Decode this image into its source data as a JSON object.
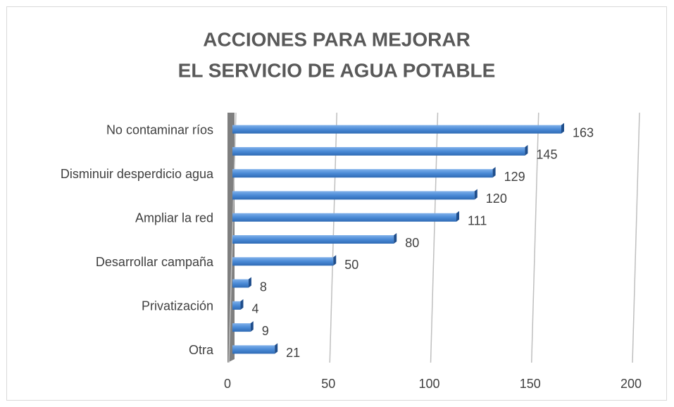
{
  "chart_data": {
    "type": "bar",
    "orientation": "horizontal",
    "title": [
      "ACCIONES PARA MEJORAR",
      "EL SERVICIO DE AGUA POTABLE"
    ],
    "categories": [
      "No contaminar ríos",
      null,
      "Disminuir desperdicio agua",
      null,
      "Ampliar la red",
      null,
      "Desarrollar campaña",
      null,
      "Privatización",
      null,
      "Otra"
    ],
    "values": [
      163,
      145,
      129,
      120,
      111,
      80,
      50,
      8,
      4,
      9,
      21
    ],
    "color": "#4a8ad6",
    "xlim": [
      0,
      200
    ],
    "xticks": [
      0,
      50,
      100,
      150,
      200
    ],
    "grid": true
  }
}
